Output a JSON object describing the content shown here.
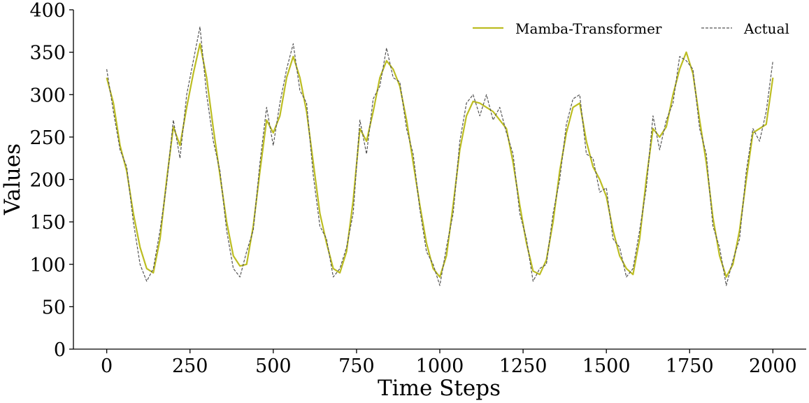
{
  "chart_data": {
    "type": "line",
    "title": "",
    "xlabel": "Time Steps",
    "ylabel": "Values",
    "xlim": [
      -100,
      2100
    ],
    "ylim": [
      0,
      400
    ],
    "xticks": [
      0,
      250,
      500,
      750,
      1000,
      1250,
      1500,
      1750,
      2000
    ],
    "yticks": [
      0,
      50,
      100,
      150,
      200,
      250,
      300,
      350,
      400
    ],
    "xtick_labels": [
      "0",
      "250",
      "500",
      "750",
      "1000",
      "1250",
      "1500",
      "1750",
      "2000"
    ],
    "ytick_labels": [
      "0",
      "50",
      "100",
      "150",
      "200",
      "250",
      "300",
      "350",
      "400"
    ],
    "grid": false,
    "legend_position": "top-right",
    "series": [
      {
        "name": "Mamba-Transformer",
        "color": "#bcbd22",
        "style": "solid",
        "x": [
          0,
          20,
          40,
          60,
          80,
          100,
          120,
          140,
          160,
          180,
          200,
          220,
          240,
          260,
          280,
          300,
          320,
          340,
          360,
          380,
          400,
          420,
          440,
          460,
          480,
          500,
          520,
          540,
          560,
          580,
          600,
          620,
          640,
          660,
          680,
          700,
          720,
          740,
          760,
          780,
          800,
          820,
          840,
          860,
          880,
          900,
          920,
          940,
          960,
          980,
          1000,
          1020,
          1040,
          1060,
          1080,
          1100,
          1120,
          1140,
          1160,
          1180,
          1200,
          1220,
          1240,
          1260,
          1280,
          1300,
          1320,
          1340,
          1360,
          1380,
          1400,
          1420,
          1440,
          1460,
          1480,
          1500,
          1520,
          1540,
          1560,
          1580,
          1600,
          1620,
          1640,
          1660,
          1680,
          1700,
          1720,
          1740,
          1760,
          1780,
          1800,
          1820,
          1840,
          1860,
          1880,
          1900,
          1920,
          1940,
          1960,
          1980,
          2000
        ],
        "values": [
          320,
          290,
          240,
          210,
          160,
          120,
          95,
          90,
          130,
          200,
          262,
          240,
          285,
          325,
          360,
          320,
          260,
          205,
          150,
          110,
          98,
          100,
          145,
          210,
          270,
          255,
          275,
          320,
          345,
          320,
          280,
          220,
          160,
          125,
          95,
          90,
          115,
          175,
          260,
          245,
          280,
          320,
          340,
          330,
          310,
          270,
          220,
          170,
          125,
          95,
          85,
          110,
          170,
          235,
          275,
          292,
          290,
          285,
          280,
          270,
          260,
          220,
          170,
          125,
          92,
          88,
          105,
          150,
          210,
          255,
          285,
          290,
          245,
          215,
          200,
          180,
          140,
          110,
          95,
          88,
          130,
          200,
          260,
          250,
          262,
          300,
          330,
          350,
          325,
          270,
          220,
          155,
          110,
          85,
          100,
          140,
          200,
          255,
          260,
          265,
          320
        ]
      },
      {
        "name": "Actual",
        "color": "#555555",
        "style": "dashed",
        "x": [
          0,
          20,
          40,
          60,
          80,
          100,
          120,
          140,
          160,
          180,
          200,
          220,
          240,
          260,
          280,
          300,
          320,
          340,
          360,
          380,
          400,
          420,
          440,
          460,
          480,
          500,
          520,
          540,
          560,
          580,
          600,
          620,
          640,
          660,
          680,
          700,
          720,
          740,
          760,
          780,
          800,
          820,
          840,
          860,
          880,
          900,
          920,
          940,
          960,
          980,
          1000,
          1020,
          1040,
          1060,
          1080,
          1100,
          1120,
          1140,
          1160,
          1180,
          1200,
          1220,
          1240,
          1260,
          1280,
          1300,
          1320,
          1340,
          1360,
          1380,
          1400,
          1420,
          1440,
          1460,
          1480,
          1500,
          1520,
          1540,
          1560,
          1580,
          1600,
          1620,
          1640,
          1660,
          1680,
          1700,
          1720,
          1740,
          1760,
          1780,
          1800,
          1820,
          1840,
          1860,
          1880,
          1900,
          1920,
          1940,
          1960,
          1980,
          2000
        ],
        "values": [
          330,
          280,
          235,
          215,
          150,
          100,
          80,
          95,
          140,
          195,
          270,
          225,
          300,
          340,
          380,
          300,
          245,
          210,
          140,
          95,
          85,
          115,
          140,
          220,
          285,
          240,
          290,
          330,
          360,
          305,
          290,
          205,
          145,
          130,
          85,
          95,
          120,
          160,
          270,
          230,
          295,
          310,
          355,
          320,
          315,
          260,
          230,
          165,
          115,
          100,
          75,
          120,
          160,
          245,
          290,
          300,
          275,
          300,
          270,
          285,
          255,
          230,
          160,
          130,
          80,
          95,
          100,
          160,
          200,
          265,
          295,
          300,
          230,
          225,
          185,
          190,
          130,
          120,
          85,
          95,
          140,
          190,
          275,
          235,
          270,
          290,
          345,
          340,
          330,
          260,
          230,
          145,
          120,
          75,
          105,
          130,
          210,
          260,
          245,
          280,
          340
        ]
      }
    ]
  }
}
